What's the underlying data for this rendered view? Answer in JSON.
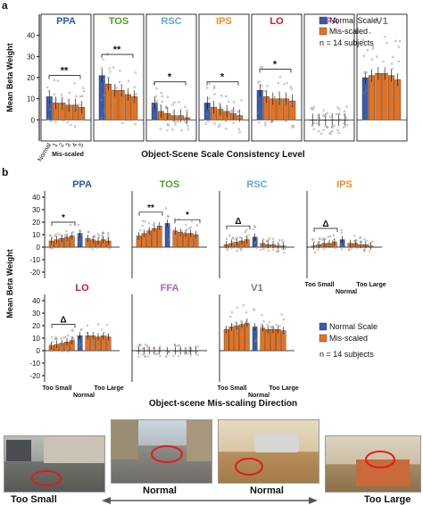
{
  "colors": {
    "normal": "#3a5ba8",
    "misscaled": "#e8711c",
    "dots": "#888888"
  },
  "figure": {
    "panel_a_label": "a",
    "panel_b_label": "b"
  },
  "chart_data": [
    {
      "type": "bar",
      "panel": "a",
      "ylabel": "Mean Beta Weight",
      "xlabel": "Object-Scene Scale Consistency Level",
      "ylim": [
        -10,
        50
      ],
      "yticks": [
        0,
        10,
        20,
        30,
        40
      ],
      "categories": [
        "Normal",
        "1",
        "2",
        "3",
        "4",
        "5"
      ],
      "category_group_label": "Mis-scaled",
      "legend": {
        "entries": [
          "Normal Scale",
          "Mis-scaled"
        ],
        "note": "n = 14 subjects"
      },
      "regions": [
        {
          "name": "PPA",
          "color": "#2a5caa",
          "values": [
            11,
            8,
            8,
            7,
            7,
            6
          ],
          "sig": "**"
        },
        {
          "name": "TOS",
          "color": "#4aa02c",
          "values": [
            21,
            17,
            14,
            14,
            12,
            11
          ],
          "sig": "**"
        },
        {
          "name": "RSC",
          "color": "#5fa8d3",
          "values": [
            8,
            4,
            3,
            2,
            2,
            1
          ],
          "sig": "*"
        },
        {
          "name": "IPS",
          "color": "#f08c1e",
          "values": [
            8,
            6,
            5,
            4,
            3,
            2
          ],
          "sig": "*"
        },
        {
          "name": "LO",
          "color": "#d7191c",
          "values": [
            14,
            11,
            10,
            10,
            10,
            9
          ],
          "sig": "*"
        },
        {
          "name": "FFA",
          "color": "#b05fc0",
          "values": [
            0,
            0,
            0,
            0,
            0,
            0
          ],
          "sig": ""
        },
        {
          "name": "V1",
          "color": "#7a7a7a",
          "values": [
            20,
            21,
            22,
            22,
            21,
            19
          ],
          "sig": ""
        }
      ]
    },
    {
      "type": "bar",
      "panel": "b",
      "ylabel": "Mean Beta Weight",
      "xlabel": "Object-scene Mis-scaling Direction",
      "ylim": [
        -25,
        45
      ],
      "yticks": [
        -20,
        -10,
        0,
        10,
        20,
        30,
        40
      ],
      "groups": [
        "Too Small",
        "Normal",
        "Too Large"
      ],
      "legend": {
        "entries": [
          "Normal Scale",
          "Mis-scaled"
        ],
        "note": "n = 14 subjects"
      },
      "regions": [
        {
          "name": "PPA",
          "color": "#2a5caa",
          "too_small": [
            5,
            6,
            7,
            8,
            9
          ],
          "normal": 11,
          "too_large": [
            7,
            6,
            5,
            6,
            5
          ],
          "sig": "*"
        },
        {
          "name": "TOS",
          "color": "#4aa02c",
          "too_small": [
            9,
            11,
            13,
            15,
            17
          ],
          "normal": 19,
          "too_large": [
            13,
            12,
            11,
            11,
            10
          ],
          "sig": "**",
          "sig2": "*"
        },
        {
          "name": "RSC",
          "color": "#5fa8d3",
          "too_small": [
            2,
            3,
            4,
            5,
            6
          ],
          "normal": 8,
          "too_large": [
            3,
            2,
            2,
            1,
            1
          ],
          "sig": "Δ"
        },
        {
          "name": "IPS",
          "color": "#f08c1e",
          "too_small": [
            1,
            2,
            3,
            3,
            4
          ],
          "normal": 6,
          "too_large": [
            3,
            3,
            2,
            2,
            1
          ],
          "sig": "Δ"
        },
        {
          "name": "LO",
          "color": "#d7191c",
          "too_small": [
            4,
            5,
            6,
            7,
            8
          ],
          "normal": 12,
          "too_large": [
            12,
            12,
            11,
            12,
            11
          ],
          "sig": "Δ"
        },
        {
          "name": "FFA",
          "color": "#b05fc0",
          "too_small": [
            0,
            0,
            0,
            0,
            0
          ],
          "normal": 0,
          "too_large": [
            0,
            0,
            0,
            0,
            0
          ],
          "sig": ""
        },
        {
          "name": "V1",
          "color": "#7a7a7a",
          "too_small": [
            17,
            19,
            20,
            21,
            22
          ],
          "normal": 19,
          "too_large": [
            18,
            17,
            17,
            17,
            16
          ],
          "sig": ""
        }
      ]
    }
  ],
  "photos": {
    "captions": [
      "Too Small",
      "Normal",
      "Normal",
      "Too Large"
    ]
  }
}
